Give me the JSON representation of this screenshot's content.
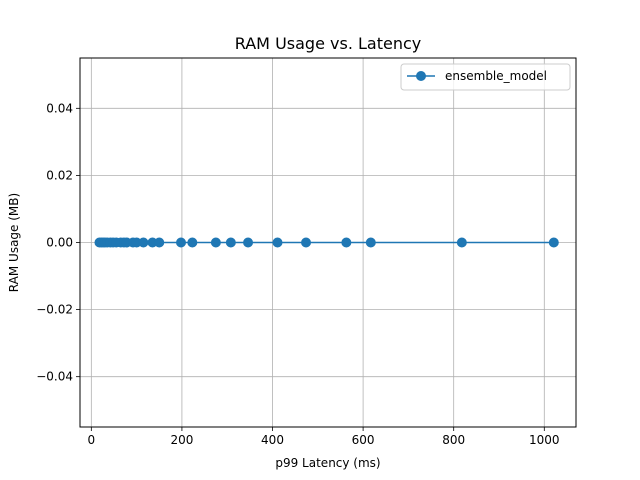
{
  "chart_data": {
    "type": "line",
    "title": "RAM Usage vs. Latency",
    "xlabel": "p99 Latency (ms)",
    "ylabel": "RAM Usage (MB)",
    "xlim": [
      -25,
      1070
    ],
    "ylim": [
      -0.055,
      0.055
    ],
    "x_ticks": [
      0,
      200,
      400,
      600,
      800,
      1000
    ],
    "x_tick_labels": [
      "0",
      "200",
      "400",
      "600",
      "800",
      "1000"
    ],
    "y_ticks": [
      -0.04,
      -0.02,
      0.0,
      0.02,
      0.04
    ],
    "y_tick_labels": [
      "−0.04",
      "−0.02",
      "0.00",
      "0.02",
      "0.04"
    ],
    "grid": true,
    "legend_position": "top-right",
    "marker": "circle",
    "series": [
      {
        "name": "ensemble_model",
        "color": "#1f77b4",
        "x": [
          18,
          22,
          26,
          30,
          35,
          42,
          48,
          55,
          65,
          72,
          78,
          92,
          100,
          115,
          135,
          150,
          198,
          223,
          275,
          308,
          346,
          411,
          474,
          563,
          617,
          818,
          1021
        ],
        "y": [
          0,
          0,
          0,
          0,
          0,
          0,
          0,
          0,
          0,
          0,
          0,
          0,
          0,
          0,
          0,
          0,
          0,
          0,
          0,
          0,
          0,
          0,
          0,
          0,
          0,
          0,
          0
        ]
      }
    ]
  }
}
